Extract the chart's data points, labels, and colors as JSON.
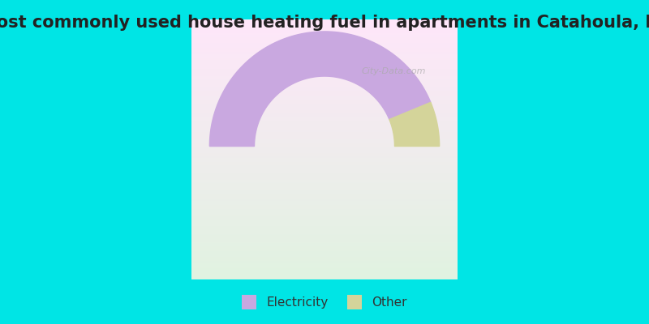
{
  "title": "Most commonly used house heating fuel in apartments in Catahoula, LA",
  "slices": [
    {
      "label": "Electricity",
      "value": 87.5,
      "color": "#c9a8e0"
    },
    {
      "label": "Other",
      "value": 12.5,
      "color": "#d4d49a"
    }
  ],
  "background_top": "#00e5e5",
  "background_chart_top": "#e8f5e0",
  "background_chart_bottom": "#f5e8f5",
  "title_fontsize": 15,
  "legend_fontsize": 11,
  "watermark": "City-Data.com"
}
